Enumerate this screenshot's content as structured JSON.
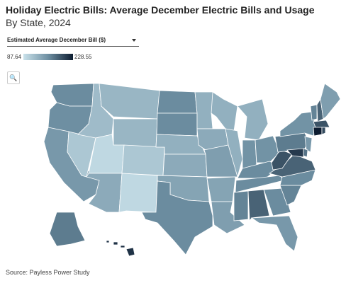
{
  "chart_data": {
    "type": "choropleth",
    "title": "Holiday Electric Bills: Average December Electric Bills and Usage",
    "subtitle": "By State, 2024",
    "dropdown": "Estimated Average December Bill ($)",
    "source": "Source: Payless Power Study",
    "colorscale": {
      "min": 87.64,
      "max": 228.55,
      "colors": [
        "#c9e1ea",
        "#6e8fa2",
        "#0c1c30"
      ]
    },
    "values": [
      160,
      158,
      150,
      110,
      120,
      125,
      125,
      95,
      110,
      135,
      95,
      160,
      160,
      130,
      135,
      140,
      160,
      130,
      135,
      145,
      140,
      145,
      130,
      130,
      130,
      155,
      155,
      160,
      160,
      165,
      185,
      160,
      150,
      165,
      160,
      185,
      195,
      170,
      155,
      165,
      185,
      145,
      195,
      228.55,
      200,
      150,
      175,
      210,
      170,
      215
    ]
  }
}
